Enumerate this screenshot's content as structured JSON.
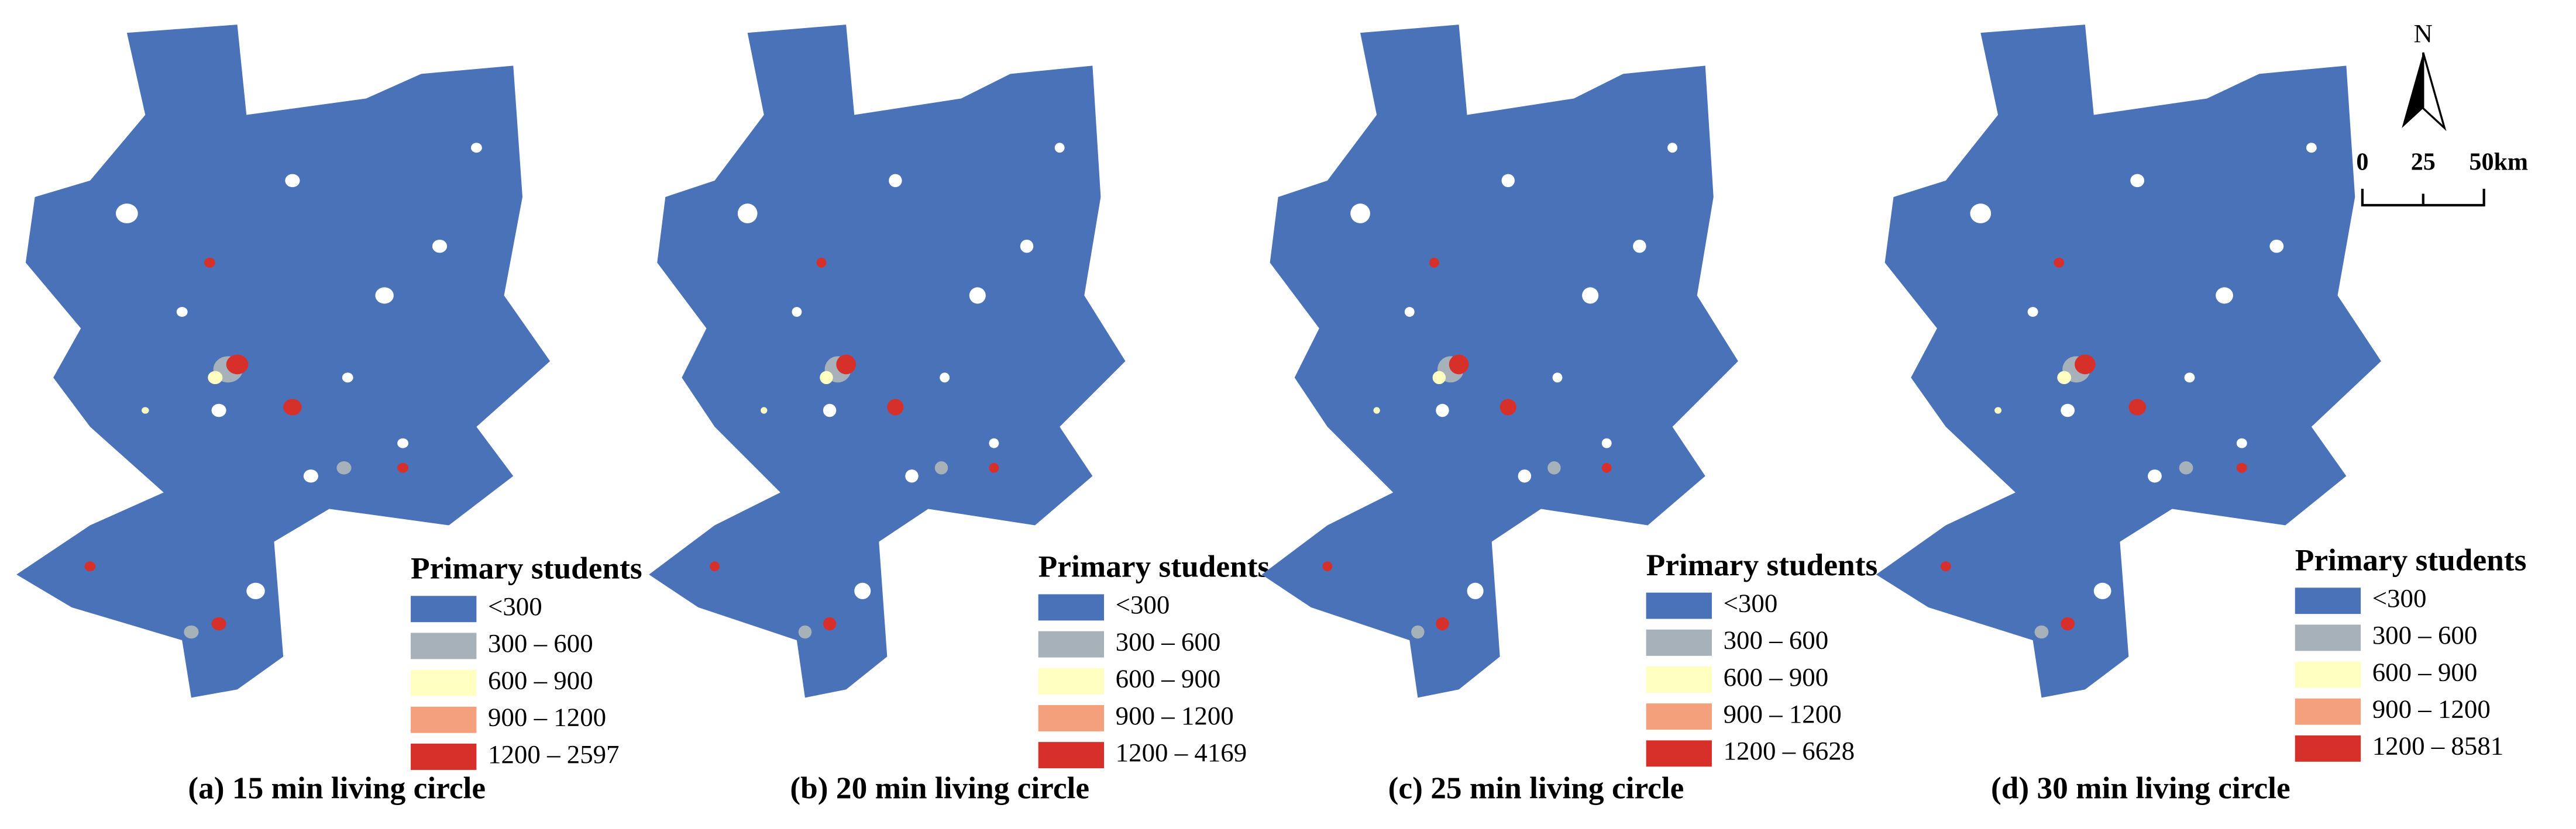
{
  "panels": [
    {
      "caption": "(a) 15 min living circle",
      "legend": {
        "title": "Primary students",
        "items": [
          {
            "label": "<300",
            "color": "#4a72b8"
          },
          {
            "label": "300 – 600",
            "color": "#a7b1ba"
          },
          {
            "label": "600 – 900",
            "color": "#ffffc2"
          },
          {
            "label": "900 – 1200",
            "color": "#f5a07c"
          },
          {
            "label": "1200 – 2597",
            "color": "#d7302a"
          }
        ]
      }
    },
    {
      "caption": "(b) 20 min living circle",
      "legend": {
        "title": "Primary students",
        "items": [
          {
            "label": "<300",
            "color": "#4a72b8"
          },
          {
            "label": "300 – 600",
            "color": "#a7b1ba"
          },
          {
            "label": "600 – 900",
            "color": "#ffffc2"
          },
          {
            "label": "900 – 1200",
            "color": "#f5a07c"
          },
          {
            "label": "1200 – 4169",
            "color": "#d7302a"
          }
        ]
      }
    },
    {
      "caption": "(c) 25 min living circle",
      "legend": {
        "title": "Primary students",
        "items": [
          {
            "label": "<300",
            "color": "#4a72b8"
          },
          {
            "label": "300 – 600",
            "color": "#a7b1ba"
          },
          {
            "label": "600 – 900",
            "color": "#ffffc2"
          },
          {
            "label": "900 – 1200",
            "color": "#f5a07c"
          },
          {
            "label": "1200 – 6628",
            "color": "#d7302a"
          }
        ]
      }
    },
    {
      "caption": "(d) 30 min living circle",
      "legend": {
        "title": "Primary students",
        "items": [
          {
            "label": "<300",
            "color": "#4a72b8"
          },
          {
            "label": "300 – 600",
            "color": "#a7b1ba"
          },
          {
            "label": "600 – 900",
            "color": "#ffffc2"
          },
          {
            "label": "900 – 1200",
            "color": "#f5a07c"
          },
          {
            "label": "1200 – 8581",
            "color": "#d7302a"
          }
        ]
      }
    }
  ],
  "north_arrow": {
    "label": "N"
  },
  "scale_bar": {
    "labels": [
      "0",
      "25",
      "50km"
    ]
  }
}
